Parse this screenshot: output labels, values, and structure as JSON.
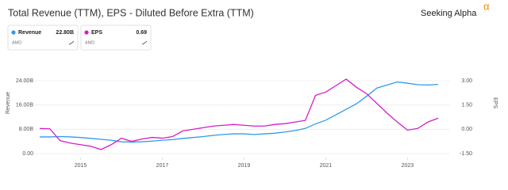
{
  "chart_data": {
    "type": "line",
    "title": "Total Revenue (TTM), EPS - Diluted Before Extra (TTM)",
    "logo": "Seeking Alpha",
    "logo_mark": "α",
    "x": [
      2014,
      2014.25,
      2014.5,
      2014.75,
      2015,
      2015.25,
      2015.5,
      2015.75,
      2016,
      2016.25,
      2016.5,
      2016.75,
      2017,
      2017.25,
      2017.5,
      2017.75,
      2018,
      2018.25,
      2018.5,
      2018.75,
      2019,
      2019.25,
      2019.5,
      2019.75,
      2020,
      2020.25,
      2020.5,
      2020.75,
      2021,
      2021.25,
      2021.5,
      2021.75,
      2022,
      2022.25,
      2022.5,
      2022.75,
      2023,
      2023.25,
      2023.5,
      2023.75
    ],
    "xlim": [
      2014,
      2023.75
    ],
    "xticks": [
      2015,
      2017,
      2019,
      2021,
      2023
    ],
    "series": [
      {
        "name": "Revenue",
        "color": "#2e9bea",
        "ticker": "AMD",
        "legend_value": "22.80B",
        "values": [
          5.5,
          5.5,
          5.6,
          5.5,
          5.3,
          5.0,
          4.7,
          4.4,
          3.9,
          3.8,
          3.9,
          4.1,
          4.4,
          4.6,
          5.0,
          5.3,
          5.6,
          6.0,
          6.3,
          6.5,
          6.5,
          6.3,
          6.5,
          6.7,
          7.1,
          7.6,
          8.3,
          9.8,
          11.0,
          12.8,
          14.6,
          16.4,
          18.9,
          21.6,
          22.6,
          23.6,
          23.2,
          22.7,
          22.6,
          22.8
        ]
      },
      {
        "name": "EPS",
        "color": "#d51ec7",
        "ticker": "AMD",
        "legend_value": "0.69",
        "axis": "y2",
        "values": [
          0.05,
          0.03,
          -0.7,
          -0.85,
          -0.95,
          -1.05,
          -1.25,
          -0.95,
          -0.55,
          -0.75,
          -0.6,
          -0.5,
          -0.55,
          -0.45,
          -0.1,
          0.0,
          0.1,
          0.2,
          0.25,
          0.3,
          0.25,
          0.2,
          0.2,
          0.3,
          0.35,
          0.45,
          0.55,
          2.1,
          2.3,
          2.7,
          3.1,
          2.6,
          2.2,
          1.6,
          1.0,
          0.45,
          -0.05,
          0.05,
          0.45,
          0.69
        ]
      }
    ],
    "ylabel": "Revenue",
    "ylim": [
      0,
      24
    ],
    "yticks": [
      {
        "value": 0,
        "label": "0.00"
      },
      {
        "value": 8,
        "label": "8.00B"
      },
      {
        "value": 16,
        "label": "16.00B"
      },
      {
        "value": 24,
        "label": "24.00B"
      }
    ],
    "y2label": "EPS",
    "y2lim": [
      -1.5,
      3
    ],
    "y2ticks": [
      {
        "value": -1.5,
        "label": "-1.50"
      },
      {
        "value": 0,
        "label": "0.00"
      },
      {
        "value": 1.5,
        "label": "1.50"
      },
      {
        "value": 3,
        "label": "3.00"
      }
    ],
    "grid": true
  }
}
